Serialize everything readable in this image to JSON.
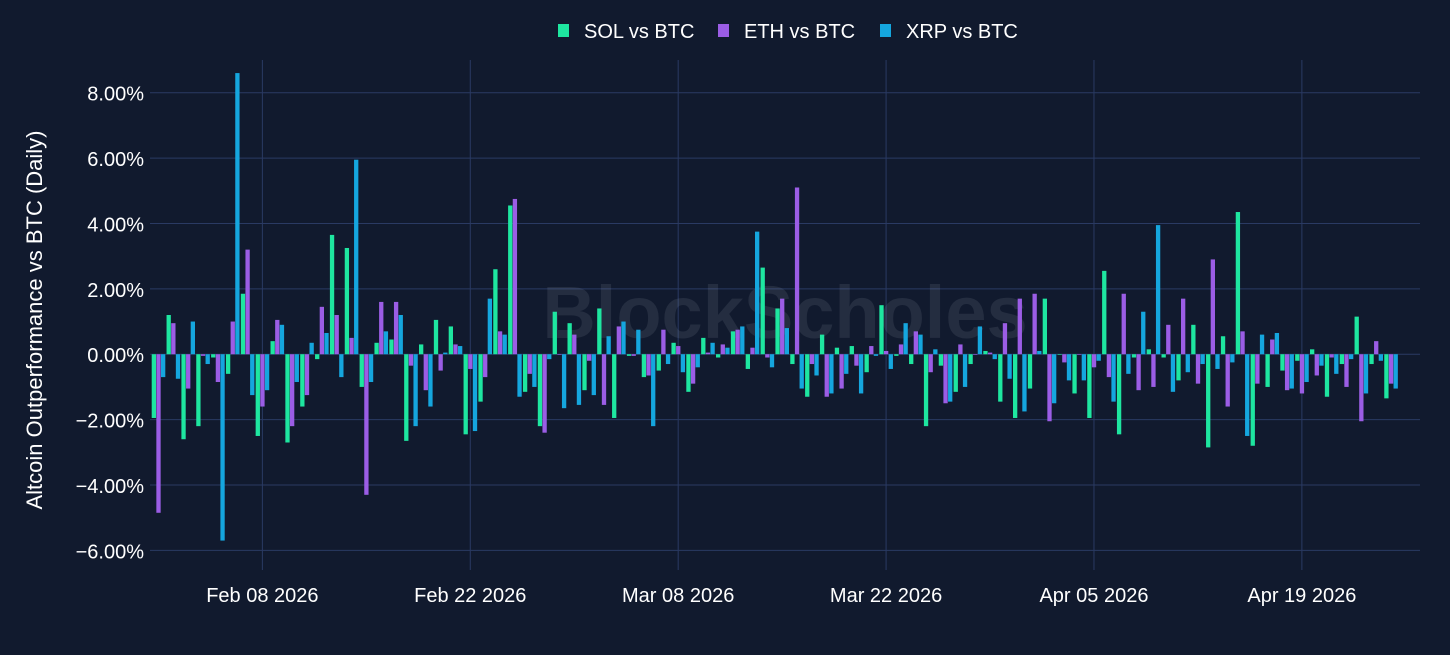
{
  "chart_data": {
    "type": "bar",
    "title": "",
    "watermark": "BlockScholes",
    "ylabel": "Altcoin Outperformance vs BTC (Daily)",
    "xlabel": "",
    "ylim": [
      -6.6,
      9.0
    ],
    "yticks": [
      -6,
      -4,
      -2,
      0,
      2,
      4,
      6,
      8
    ],
    "ytick_labels": [
      "−6.00%",
      "−4.00%",
      "−2.00%",
      "0.00%",
      "2.00%",
      "4.00%",
      "6.00%",
      "8.00%"
    ],
    "x_start_date": "2026-02-01",
    "xticks": [
      {
        "day": 7,
        "label": "Feb 08 2026"
      },
      {
        "day": 21,
        "label": "Feb 22 2026"
      },
      {
        "day": 35,
        "label": "Mar 08 2026"
      },
      {
        "day": 49,
        "label": "Mar 22 2026"
      },
      {
        "day": 63,
        "label": "Apr 05 2026"
      },
      {
        "day": 77,
        "label": "Apr 19 2026"
      }
    ],
    "grid": true,
    "legend_position": "top-center",
    "series": [
      {
        "name": "SOL vs BTC",
        "color": "#1ee6a0",
        "values": [
          -1.95,
          1.2,
          -2.6,
          -2.2,
          -0.1,
          -0.6,
          1.85,
          -2.5,
          0.4,
          -2.7,
          -1.6,
          -0.15,
          3.65,
          3.25,
          -1.0,
          0.35,
          0.45,
          -2.65,
          0.3,
          1.05,
          0.85,
          -2.45,
          -1.45,
          2.6,
          4.55,
          -1.15,
          -2.2,
          1.3,
          0.95,
          -1.1,
          1.4,
          -1.95,
          -0.05,
          -0.7,
          -0.5,
          0.35,
          -1.15,
          0.5,
          -0.1,
          0.7,
          -0.45,
          2.65,
          1.4,
          -0.3,
          -1.3,
          0.6,
          0.2,
          0.25,
          -0.55,
          1.5,
          -0.05,
          -0.3,
          -2.2,
          -0.35,
          -1.15,
          -0.3,
          0.1,
          -1.45,
          -1.95,
          -1.05,
          1.7,
          0.0,
          -1.2,
          -1.95,
          2.55,
          -2.45,
          -0.1,
          0.15,
          -0.1,
          -0.8,
          0.9,
          -2.85,
          0.55,
          4.35,
          -2.8,
          -1.0,
          -0.5,
          -0.2,
          0.15,
          -1.3,
          -0.3,
          1.15,
          -0.3,
          -1.35
        ]
      },
      {
        "name": "ETH vs BTC",
        "color": "#9b5de5",
        "values": [
          -4.85,
          0.95,
          -1.05,
          -0.05,
          -0.85,
          1.0,
          3.2,
          -1.6,
          1.05,
          -2.2,
          -1.25,
          1.45,
          1.2,
          0.5,
          -4.3,
          1.6,
          1.6,
          -0.35,
          -1.1,
          -0.5,
          0.3,
          -0.45,
          -0.7,
          0.7,
          4.75,
          -0.6,
          -2.4,
          0.0,
          0.6,
          -0.2,
          -1.55,
          0.85,
          -0.05,
          -0.65,
          0.75,
          0.25,
          -0.9,
          0.05,
          0.3,
          0.75,
          0.2,
          -0.1,
          1.7,
          5.1,
          -0.3,
          -1.3,
          -1.05,
          -0.35,
          0.25,
          0.1,
          0.3,
          0.7,
          -0.55,
          -1.5,
          0.3,
          0.0,
          0.05,
          0.95,
          1.7,
          1.85,
          -2.05,
          -0.25,
          0.0,
          -0.4,
          -0.7,
          1.85,
          -1.1,
          -1.0,
          0.9,
          1.7,
          -0.9,
          2.9,
          -1.6,
          0.7,
          -0.9,
          0.45,
          -1.1,
          -1.2,
          -0.65,
          -0.1,
          -1.0,
          -2.05,
          0.4,
          -0.9
        ]
      },
      {
        "name": "XRP vs BTC",
        "color": "#15a6de",
        "values": [
          -0.7,
          -0.75,
          1.0,
          -0.3,
          -5.7,
          8.6,
          -1.25,
          -1.1,
          0.9,
          -0.85,
          0.35,
          0.65,
          -0.7,
          5.95,
          -0.85,
          0.7,
          1.2,
          -2.2,
          -1.6,
          0.05,
          0.25,
          -2.35,
          1.7,
          0.6,
          -1.3,
          -1.0,
          -0.15,
          -1.65,
          -1.55,
          -1.25,
          0.55,
          1.0,
          0.75,
          -2.2,
          -0.3,
          -0.55,
          -0.4,
          0.35,
          0.2,
          0.85,
          3.75,
          -0.4,
          0.8,
          -1.05,
          -0.65,
          -1.2,
          -0.6,
          -1.2,
          -0.05,
          -0.45,
          0.95,
          0.6,
          0.15,
          -1.45,
          -1.0,
          0.85,
          -0.15,
          -0.75,
          -1.75,
          0.1,
          -1.5,
          -0.8,
          -0.8,
          -0.2,
          -1.45,
          -0.6,
          1.3,
          3.95,
          -1.15,
          -0.55,
          -0.3,
          -0.45,
          -0.25,
          -2.5,
          0.6,
          0.65,
          -1.05,
          -0.85,
          -0.35,
          -0.6,
          -0.15,
          -1.2,
          -0.2,
          -1.05
        ]
      }
    ]
  }
}
